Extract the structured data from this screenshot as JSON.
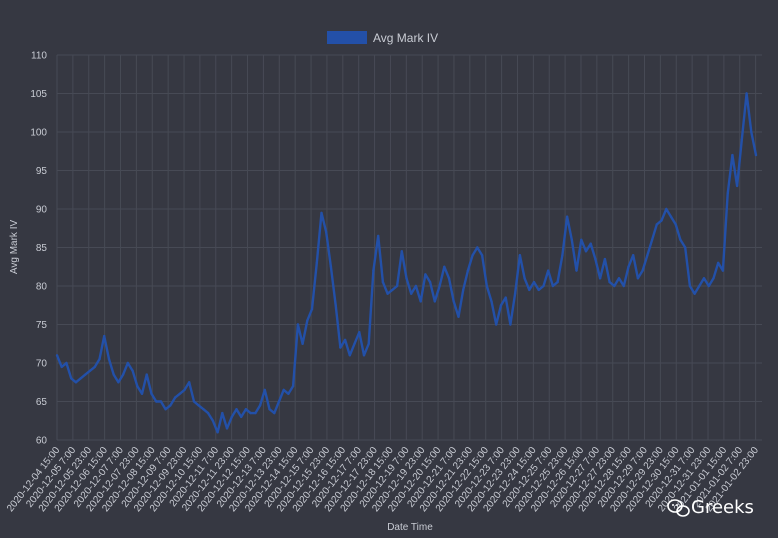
{
  "colors": {
    "background": "#363842",
    "grid": "#474a55",
    "axis_text": "#c9ccd4",
    "series": "#2350a8"
  },
  "watermark": {
    "text": "Greeks",
    "icon": "wechat-icon"
  },
  "chart_data": {
    "type": "line",
    "title": "",
    "xlabel": "Date Time",
    "ylabel": "Avg Mark IV",
    "ylim": [
      60,
      110
    ],
    "yticks": [
      60,
      65,
      70,
      75,
      80,
      85,
      90,
      95,
      100,
      105,
      110
    ],
    "grid": true,
    "legend_position": "top-center",
    "x_tick_labels": [
      "2020-12-04 15:00",
      "2020-12-05 7:00",
      "2020-12-05 23:00",
      "2020-12-06 15:00",
      "2020-12-07 7:00",
      "2020-12-07 23:00",
      "2020-12-08 15:00",
      "2020-12-09 7:00",
      "2020-12-09 23:00",
      "2020-12-10 15:00",
      "2020-12-11 7:00",
      "2020-12-11 23:00",
      "2020-12-12 15:00",
      "2020-12-13 7:00",
      "2020-12-13 23:00",
      "2020-12-14 15:00",
      "2020-12-15 7:00",
      "2020-12-15 23:00",
      "2020-12-16 15:00",
      "2020-12-17 7:00",
      "2020-12-17 23:00",
      "2020-12-18 15:00",
      "2020-12-19 7:00",
      "2020-12-19 23:00",
      "2020-12-20 15:00",
      "2020-12-21 7:00",
      "2020-12-21 23:00",
      "2020-12-22 15:00",
      "2020-12-23 7:00",
      "2020-12-23 23:00",
      "2020-12-24 15:00",
      "2020-12-25 7:00",
      "2020-12-25 23:00",
      "2020-12-26 15:00",
      "2020-12-27 7:00",
      "2020-12-27 23:00",
      "2020-12-28 15:00",
      "2020-12-29 7:00",
      "2020-12-29 23:00",
      "2020-12-30 15:00",
      "2020-12-31 7:00",
      "2020-12-31 23:00",
      "2021-01-01 15:00",
      "2021-01-02 7:00",
      "2021-01-02 23:00"
    ],
    "series": [
      {
        "name": "Avg Mark IV",
        "x_start": "2020-12-04 15:00",
        "step_hours": 4,
        "values": [
          71,
          69.5,
          70,
          68,
          67.5,
          68,
          68.5,
          69,
          69.5,
          70.5,
          73.5,
          70.5,
          68.5,
          67.5,
          68.5,
          70,
          69,
          67,
          66,
          68.5,
          66,
          65,
          65,
          64,
          64.5,
          65.5,
          66,
          66.5,
          67.5,
          65,
          64.5,
          64,
          63.5,
          62.5,
          61,
          63.5,
          61.5,
          63,
          64,
          63,
          64,
          63.5,
          63.5,
          64.5,
          66.5,
          64,
          63.5,
          65,
          66.5,
          66,
          67,
          75,
          72.5,
          75.5,
          77,
          83,
          89.5,
          87,
          82.5,
          77.5,
          72,
          73,
          71,
          72.5,
          74,
          71,
          72.5,
          82,
          86.5,
          80.5,
          79,
          79.5,
          80,
          84.5,
          81,
          79,
          80,
          78,
          81.5,
          80.5,
          78,
          80,
          82.5,
          81,
          78,
          76,
          79.5,
          82,
          84,
          85,
          84,
          80,
          78,
          75,
          77.5,
          78.5,
          75,
          79,
          84,
          81,
          79.5,
          80.5,
          79.5,
          80,
          82,
          80,
          80.5,
          84,
          89,
          86,
          82,
          86,
          84.5,
          85.5,
          83.5,
          81,
          83.5,
          80.5,
          80,
          81,
          80,
          82.5,
          84,
          81,
          82,
          84,
          86,
          88,
          88.5,
          90,
          89,
          88,
          86,
          85,
          80,
          79,
          80,
          81,
          80,
          81,
          83,
          82,
          92,
          97,
          93,
          99,
          105,
          100,
          97
        ]
      }
    ]
  }
}
